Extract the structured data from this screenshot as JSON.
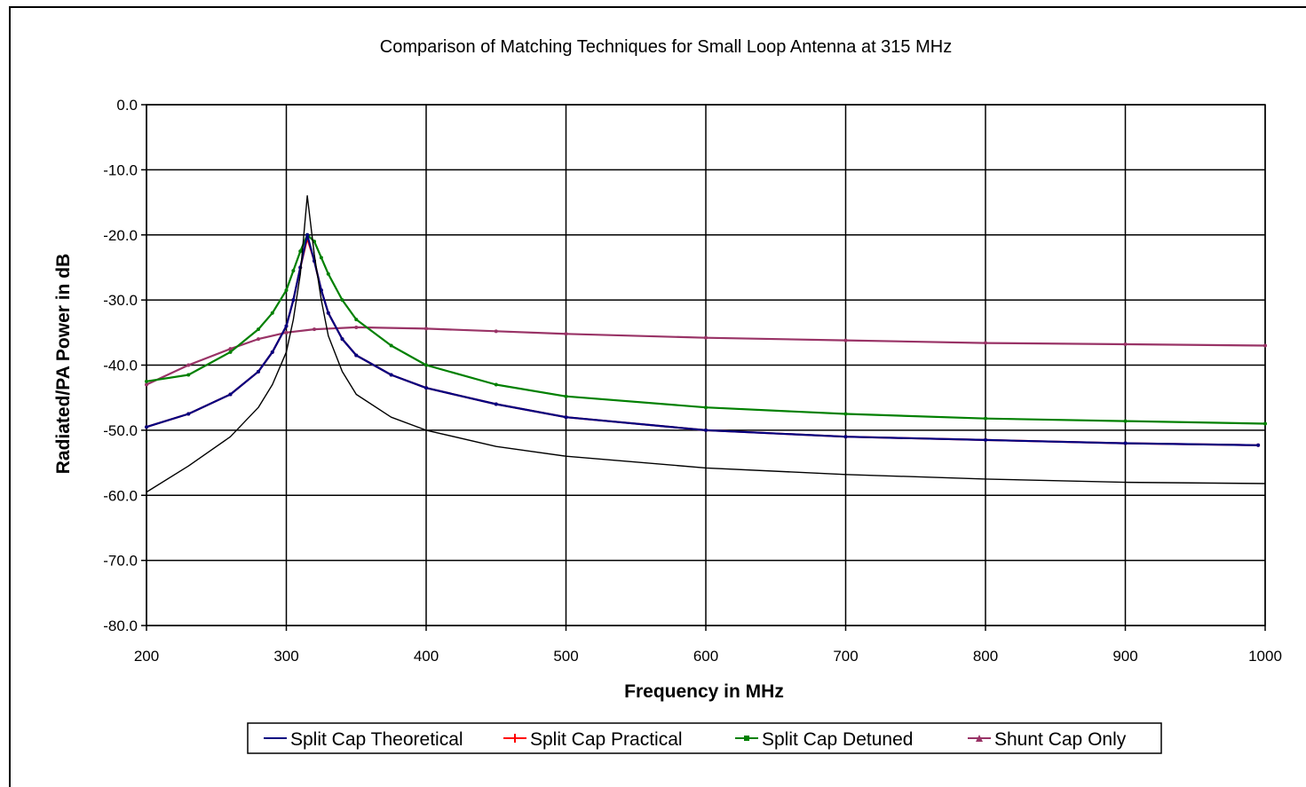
{
  "chart_data": {
    "type": "line",
    "title": "Comparison of Matching Techniques for Small Loop Antenna at 315 MHz",
    "xlabel": "Frequency in MHz",
    "ylabel": "Radiated/PA Power in dB",
    "xlim": [
      200,
      1000
    ],
    "ylim": [
      -80,
      0
    ],
    "x_ticks": [
      "200",
      "300",
      "400",
      "500",
      "600",
      "700",
      "800",
      "900",
      "1000"
    ],
    "y_ticks": [
      "0.0",
      "-10.0",
      "-20.0",
      "-30.0",
      "-40.0",
      "-50.0",
      "-60.0",
      "-70.0",
      "-80.0"
    ],
    "grid": true,
    "legend_position": "bottom",
    "series": [
      {
        "name": "Split Cap Theoretical",
        "color": "#000080",
        "x": [
          200,
          230,
          260,
          280,
          290,
          300,
          305,
          310,
          315,
          320,
          325,
          330,
          340,
          350,
          375,
          400,
          450,
          500,
          600,
          700,
          800,
          900,
          995
        ],
        "y": [
          -49.5,
          -47.5,
          -44.5,
          -41.0,
          -38.0,
          -34.0,
          -30.0,
          -25.0,
          -20.0,
          -24.0,
          -28.5,
          -32.0,
          -36.0,
          -38.5,
          -41.5,
          -43.5,
          -46.0,
          -48.0,
          -50.0,
          -51.0,
          -51.5,
          -52.0,
          -52.3
        ]
      },
      {
        "name": "Split Cap Practical",
        "color": "#ff0000",
        "x": [
          200,
          230,
          260,
          280,
          290,
          300,
          305,
          310,
          315,
          320,
          325,
          330,
          340,
          350,
          375,
          400,
          450,
          500,
          600,
          700,
          800,
          900,
          995
        ],
        "y": [
          -49.5,
          -47.5,
          -44.5,
          -41.0,
          -38.0,
          -34.0,
          -30.0,
          -25.0,
          -20.5,
          -24.0,
          -28.5,
          -32.0,
          -36.0,
          -38.5,
          -41.5,
          -43.5,
          -46.0,
          -48.0,
          -50.0,
          -51.0,
          -51.5,
          -52.0,
          -52.3
        ]
      },
      {
        "name": "Split Cap Detuned",
        "color": "#008000",
        "x": [
          200,
          230,
          260,
          280,
          290,
          300,
          305,
          310,
          315,
          320,
          325,
          330,
          340,
          350,
          375,
          400,
          450,
          500,
          600,
          700,
          800,
          900,
          1000
        ],
        "y": [
          -42.5,
          -41.5,
          -38.0,
          -34.5,
          -32.0,
          -28.5,
          -25.5,
          -22.5,
          -20.0,
          -21.0,
          -23.5,
          -26.0,
          -30.0,
          -33.0,
          -37.0,
          -40.0,
          -43.0,
          -44.8,
          -46.5,
          -47.5,
          -48.2,
          -48.6,
          -49.0
        ]
      },
      {
        "name": "Shunt Cap Only",
        "color": "#993366",
        "x": [
          200,
          230,
          260,
          280,
          300,
          320,
          350,
          400,
          450,
          500,
          600,
          700,
          800,
          900,
          1000
        ],
        "y": [
          -43.0,
          -40.0,
          -37.5,
          -36.0,
          -35.0,
          -34.5,
          -34.2,
          -34.4,
          -34.8,
          -35.2,
          -35.8,
          -36.2,
          -36.6,
          -36.8,
          -37.0
        ]
      },
      {
        "name": "",
        "color": "#000000",
        "x": [
          200,
          230,
          260,
          280,
          290,
          300,
          305,
          310,
          315,
          320,
          325,
          330,
          340,
          350,
          375,
          400,
          450,
          500,
          600,
          700,
          800,
          900,
          1000
        ],
        "y": [
          -59.5,
          -55.5,
          -51.0,
          -46.5,
          -43.0,
          -38.0,
          -33.0,
          -26.0,
          -14.0,
          -23.0,
          -30.0,
          -35.5,
          -41.0,
          -44.5,
          -48.0,
          -50.0,
          -52.5,
          -54.0,
          -55.8,
          -56.8,
          -57.5,
          -58.0,
          -58.2
        ]
      }
    ]
  }
}
